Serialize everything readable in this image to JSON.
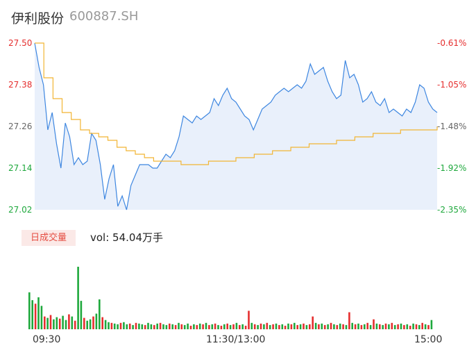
{
  "stock": {
    "name": "伊利股份",
    "code": "600887.SH"
  },
  "chart_data": {
    "type": "line",
    "price_axis": {
      "ticks": [
        "27.50",
        "27.38",
        "27.26",
        "27.14",
        "27.02"
      ],
      "ylim": [
        27.02,
        27.5
      ]
    },
    "pct_axis": {
      "ticks": [
        "-0.61%",
        "-1.05%",
        "-1.48%",
        "-1.92%",
        "-2.35%"
      ]
    },
    "x_ticks": [
      "09:30",
      "11:30/13:00",
      "15:00"
    ],
    "colors": {
      "price": "#3d86e0",
      "avg": "#f2b533",
      "up": "#e52e2e",
      "down": "#1ea83c",
      "area": "#e9f0fb"
    },
    "price": [
      27.5,
      27.43,
      27.38,
      27.25,
      27.3,
      27.21,
      27.14,
      27.27,
      27.23,
      27.15,
      27.17,
      27.15,
      27.16,
      27.24,
      27.22,
      27.15,
      27.05,
      27.11,
      27.15,
      27.03,
      27.06,
      27.02,
      27.09,
      27.12,
      27.15,
      27.15,
      27.15,
      27.14,
      27.14,
      27.16,
      27.18,
      27.17,
      27.19,
      27.23,
      27.29,
      27.28,
      27.27,
      27.29,
      27.28,
      27.29,
      27.3,
      27.34,
      27.32,
      27.35,
      27.37,
      27.34,
      27.33,
      27.31,
      27.29,
      27.28,
      27.25,
      27.28,
      27.31,
      27.32,
      27.33,
      27.35,
      27.36,
      27.37,
      27.36,
      27.37,
      27.38,
      27.37,
      27.39,
      27.44,
      27.41,
      27.42,
      27.43,
      27.39,
      27.36,
      27.34,
      27.35,
      27.45,
      27.4,
      27.41,
      27.38,
      27.33,
      27.34,
      27.36,
      27.33,
      27.32,
      27.34,
      27.3,
      27.31,
      27.3,
      27.29,
      27.31,
      27.3,
      27.33,
      27.38,
      27.37,
      27.33,
      27.31,
      27.3
    ],
    "avg": [
      27.5,
      27.4,
      27.34,
      27.3,
      27.28,
      27.25,
      27.24,
      27.23,
      27.22,
      27.2,
      27.19,
      27.18,
      27.17,
      27.16,
      27.16,
      27.16,
      27.15,
      27.15,
      27.15,
      27.16,
      27.16,
      27.16,
      27.17,
      27.17,
      27.18,
      27.18,
      27.19,
      27.19,
      27.2,
      27.2,
      27.21,
      27.21,
      27.21,
      27.22,
      27.22,
      27.23,
      27.23,
      27.24,
      27.24,
      27.24,
      27.25,
      27.25,
      27.25,
      27.25,
      27.26
    ],
    "volume": [
      {
        "v": 52,
        "d": "down"
      },
      {
        "v": 41,
        "d": "down"
      },
      {
        "v": 36,
        "d": "up"
      },
      {
        "v": 45,
        "d": "down"
      },
      {
        "v": 33,
        "d": "down"
      },
      {
        "v": 18,
        "d": "up"
      },
      {
        "v": 16,
        "d": "down"
      },
      {
        "v": 20,
        "d": "up"
      },
      {
        "v": 14,
        "d": "down"
      },
      {
        "v": 17,
        "d": "down"
      },
      {
        "v": 15,
        "d": "up"
      },
      {
        "v": 19,
        "d": "down"
      },
      {
        "v": 13,
        "d": "down"
      },
      {
        "v": 21,
        "d": "up"
      },
      {
        "v": 18,
        "d": "down"
      },
      {
        "v": 12,
        "d": "up"
      },
      {
        "v": 88,
        "d": "down"
      },
      {
        "v": 40,
        "d": "down"
      },
      {
        "v": 16,
        "d": "up"
      },
      {
        "v": 12,
        "d": "down"
      },
      {
        "v": 14,
        "d": "down"
      },
      {
        "v": 18,
        "d": "up"
      },
      {
        "v": 22,
        "d": "down"
      },
      {
        "v": 42,
        "d": "down"
      },
      {
        "v": 17,
        "d": "up"
      },
      {
        "v": 13,
        "d": "down"
      },
      {
        "v": 10,
        "d": "down"
      },
      {
        "v": 9,
        "d": "up"
      },
      {
        "v": 8,
        "d": "down"
      },
      {
        "v": 7,
        "d": "down"
      },
      {
        "v": 9,
        "d": "up"
      },
      {
        "v": 10,
        "d": "down"
      },
      {
        "v": 7,
        "d": "down"
      },
      {
        "v": 8,
        "d": "up"
      },
      {
        "v": 6,
        "d": "down"
      },
      {
        "v": 9,
        "d": "up"
      },
      {
        "v": 8,
        "d": "down"
      },
      {
        "v": 7,
        "d": "down"
      },
      {
        "v": 6,
        "d": "up"
      },
      {
        "v": 9,
        "d": "down"
      },
      {
        "v": 7,
        "d": "down"
      },
      {
        "v": 6,
        "d": "up"
      },
      {
        "v": 8,
        "d": "down"
      },
      {
        "v": 9,
        "d": "up"
      },
      {
        "v": 7,
        "d": "down"
      },
      {
        "v": 6,
        "d": "down"
      },
      {
        "v": 8,
        "d": "up"
      },
      {
        "v": 7,
        "d": "down"
      },
      {
        "v": 6,
        "d": "up"
      },
      {
        "v": 9,
        "d": "down"
      },
      {
        "v": 7,
        "d": "up"
      },
      {
        "v": 6,
        "d": "down"
      },
      {
        "v": 8,
        "d": "down"
      },
      {
        "v": 5,
        "d": "up"
      },
      {
        "v": 7,
        "d": "down"
      },
      {
        "v": 6,
        "d": "up"
      },
      {
        "v": 8,
        "d": "down"
      },
      {
        "v": 7,
        "d": "up"
      },
      {
        "v": 9,
        "d": "down"
      },
      {
        "v": 6,
        "d": "up"
      },
      {
        "v": 7,
        "d": "down"
      },
      {
        "v": 8,
        "d": "up"
      },
      {
        "v": 6,
        "d": "down"
      },
      {
        "v": 5,
        "d": "up"
      },
      {
        "v": 7,
        "d": "down"
      },
      {
        "v": 8,
        "d": "up"
      },
      {
        "v": 6,
        "d": "down"
      },
      {
        "v": 7,
        "d": "up"
      },
      {
        "v": 9,
        "d": "down"
      },
      {
        "v": 6,
        "d": "up"
      },
      {
        "v": 7,
        "d": "down"
      },
      {
        "v": 5,
        "d": "up"
      },
      {
        "v": 26,
        "d": "up"
      },
      {
        "v": 9,
        "d": "down"
      },
      {
        "v": 7,
        "d": "up"
      },
      {
        "v": 6,
        "d": "down"
      },
      {
        "v": 8,
        "d": "up"
      },
      {
        "v": 7,
        "d": "down"
      },
      {
        "v": 9,
        "d": "up"
      },
      {
        "v": 6,
        "d": "down"
      },
      {
        "v": 7,
        "d": "up"
      },
      {
        "v": 8,
        "d": "down"
      },
      {
        "v": 6,
        "d": "up"
      },
      {
        "v": 7,
        "d": "down"
      },
      {
        "v": 5,
        "d": "up"
      },
      {
        "v": 8,
        "d": "down"
      },
      {
        "v": 7,
        "d": "up"
      },
      {
        "v": 9,
        "d": "down"
      },
      {
        "v": 6,
        "d": "up"
      },
      {
        "v": 7,
        "d": "down"
      },
      {
        "v": 8,
        "d": "up"
      },
      {
        "v": 6,
        "d": "down"
      },
      {
        "v": 7,
        "d": "up"
      },
      {
        "v": 18,
        "d": "up"
      },
      {
        "v": 9,
        "d": "down"
      },
      {
        "v": 7,
        "d": "up"
      },
      {
        "v": 8,
        "d": "down"
      },
      {
        "v": 6,
        "d": "up"
      },
      {
        "v": 7,
        "d": "down"
      },
      {
        "v": 9,
        "d": "up"
      },
      {
        "v": 7,
        "d": "down"
      },
      {
        "v": 6,
        "d": "up"
      },
      {
        "v": 8,
        "d": "down"
      },
      {
        "v": 7,
        "d": "up"
      },
      {
        "v": 6,
        "d": "down"
      },
      {
        "v": 24,
        "d": "up"
      },
      {
        "v": 9,
        "d": "down"
      },
      {
        "v": 7,
        "d": "up"
      },
      {
        "v": 8,
        "d": "down"
      },
      {
        "v": 6,
        "d": "up"
      },
      {
        "v": 7,
        "d": "down"
      },
      {
        "v": 9,
        "d": "up"
      },
      {
        "v": 6,
        "d": "down"
      },
      {
        "v": 14,
        "d": "up"
      },
      {
        "v": 8,
        "d": "down"
      },
      {
        "v": 7,
        "d": "up"
      },
      {
        "v": 6,
        "d": "down"
      },
      {
        "v": 8,
        "d": "up"
      },
      {
        "v": 7,
        "d": "down"
      },
      {
        "v": 9,
        "d": "up"
      },
      {
        "v": 6,
        "d": "down"
      },
      {
        "v": 7,
        "d": "up"
      },
      {
        "v": 8,
        "d": "down"
      },
      {
        "v": 6,
        "d": "up"
      },
      {
        "v": 7,
        "d": "down"
      },
      {
        "v": 5,
        "d": "up"
      },
      {
        "v": 8,
        "d": "down"
      },
      {
        "v": 7,
        "d": "up"
      },
      {
        "v": 6,
        "d": "down"
      },
      {
        "v": 9,
        "d": "up"
      },
      {
        "v": 7,
        "d": "down"
      },
      {
        "v": 6,
        "d": "up"
      },
      {
        "v": 13,
        "d": "down"
      }
    ],
    "legend": {
      "vol_tag": "日成交量",
      "vol_text": "vol: 54.04万手"
    }
  }
}
